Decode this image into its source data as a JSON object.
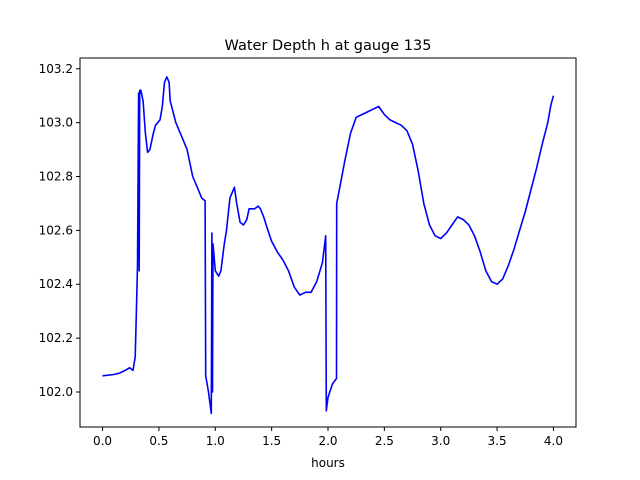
{
  "chart_data": {
    "type": "line",
    "title": "Water Depth h at gauge 135",
    "xlabel": "hours",
    "ylabel": "",
    "xlim": [
      -0.2,
      4.2
    ],
    "ylim": [
      101.87,
      103.24
    ],
    "xticks": [
      0.0,
      0.5,
      1.0,
      1.5,
      2.0,
      2.5,
      3.0,
      3.5,
      4.0
    ],
    "xtick_labels": [
      "0.0",
      "0.5",
      "1.0",
      "1.5",
      "2.0",
      "2.5",
      "3.0",
      "3.5",
      "4.0"
    ],
    "yticks": [
      102.0,
      102.2,
      102.4,
      102.6,
      102.8,
      103.0,
      103.2
    ],
    "ytick_labels": [
      "102.0",
      "102.2",
      "102.4",
      "102.6",
      "102.8",
      "103.0",
      "103.2"
    ],
    "grid": false,
    "series": [
      {
        "color": "#0000ff",
        "x": [
          0.0,
          0.1,
          0.15,
          0.2,
          0.24,
          0.27,
          0.29,
          0.3,
          0.31,
          0.32,
          0.325,
          0.33,
          0.335,
          0.34,
          0.36,
          0.38,
          0.4,
          0.42,
          0.45,
          0.47,
          0.49,
          0.51,
          0.53,
          0.55,
          0.57,
          0.59,
          0.6,
          0.62,
          0.65,
          0.7,
          0.75,
          0.8,
          0.85,
          0.88,
          0.91,
          0.915,
          0.94,
          0.965,
          0.97,
          0.975,
          0.98,
          1.0,
          1.03,
          1.05,
          1.08,
          1.1,
          1.13,
          1.17,
          1.19,
          1.22,
          1.25,
          1.28,
          1.3,
          1.32,
          1.35,
          1.38,
          1.4,
          1.43,
          1.46,
          1.5,
          1.55,
          1.6,
          1.65,
          1.7,
          1.75,
          1.8,
          1.85,
          1.9,
          1.95,
          1.98,
          1.985,
          2.0,
          2.04,
          2.075,
          2.077,
          2.1,
          2.15,
          2.2,
          2.25,
          2.3,
          2.35,
          2.4,
          2.45,
          2.5,
          2.55,
          2.6,
          2.65,
          2.7,
          2.75,
          2.8,
          2.85,
          2.9,
          2.95,
          3.0,
          3.05,
          3.1,
          3.15,
          3.2,
          3.25,
          3.3,
          3.35,
          3.4,
          3.45,
          3.5,
          3.55,
          3.6,
          3.65,
          3.7,
          3.75,
          3.8,
          3.85,
          3.9,
          3.95,
          3.97,
          3.98,
          4.0
        ],
        "values": [
          102.06,
          102.065,
          102.07,
          102.08,
          102.09,
          102.08,
          102.13,
          102.3,
          102.47,
          103.11,
          102.45,
          103.12,
          103.11,
          103.12,
          103.08,
          102.96,
          102.89,
          102.9,
          102.96,
          102.99,
          103.0,
          103.01,
          103.06,
          103.15,
          103.17,
          103.15,
          103.08,
          103.05,
          103.0,
          102.95,
          102.9,
          102.8,
          102.75,
          102.72,
          102.71,
          102.06,
          102.0,
          101.92,
          102.59,
          102.0,
          102.55,
          102.45,
          102.43,
          102.45,
          102.55,
          102.6,
          102.72,
          102.76,
          102.7,
          102.63,
          102.62,
          102.64,
          102.68,
          102.68,
          102.68,
          102.69,
          102.68,
          102.65,
          102.61,
          102.56,
          102.52,
          102.49,
          102.45,
          102.39,
          102.36,
          102.37,
          102.37,
          102.41,
          102.48,
          102.58,
          101.93,
          101.98,
          102.03,
          102.05,
          102.7,
          102.75,
          102.86,
          102.96,
          103.02,
          103.03,
          103.04,
          103.05,
          103.06,
          103.03,
          103.01,
          103.0,
          102.99,
          102.97,
          102.92,
          102.82,
          102.7,
          102.62,
          102.58,
          102.57,
          102.59,
          102.62,
          102.65,
          102.64,
          102.62,
          102.58,
          102.52,
          102.45,
          102.41,
          102.4,
          102.42,
          102.47,
          102.53,
          102.6,
          102.67,
          102.75,
          102.83,
          102.92,
          103.0,
          103.05,
          103.07,
          103.1
        ]
      }
    ]
  }
}
